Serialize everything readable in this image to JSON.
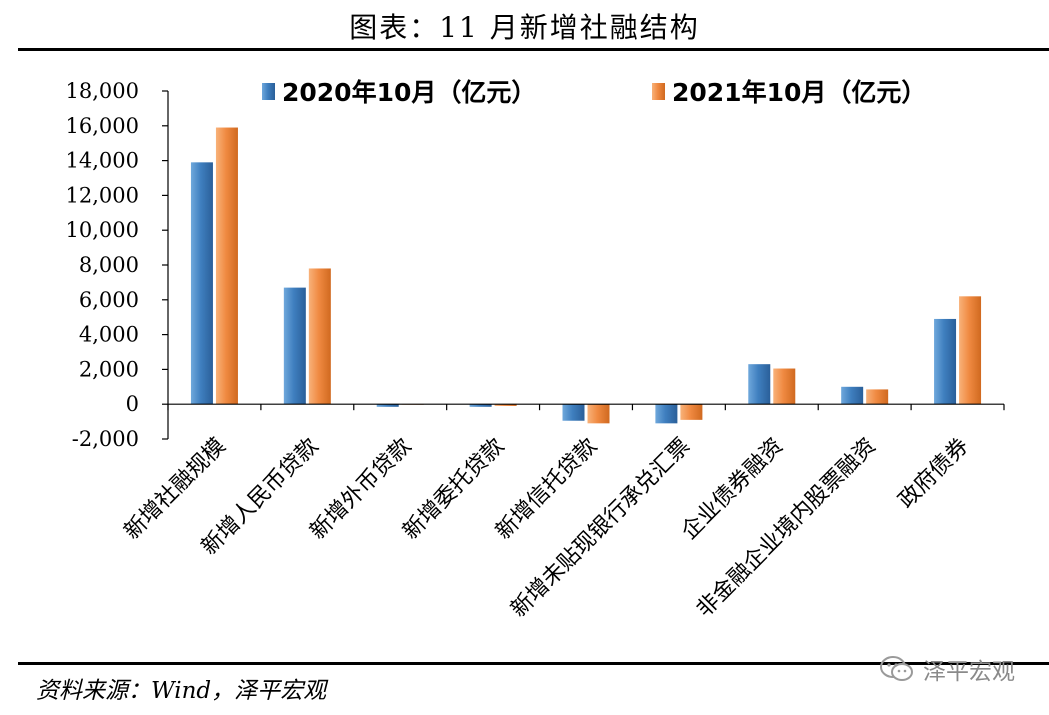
{
  "header": {
    "title": "图表：11 月新增社融结构"
  },
  "footer": {
    "source": "资料来源：Wind，泽平宏观",
    "watermark": "泽平宏观"
  },
  "chart_data": {
    "type": "bar",
    "title": "",
    "xlabel": "",
    "ylabel": "",
    "ylim": [
      -2000,
      18000
    ],
    "yticks": [
      18000,
      16000,
      14000,
      12000,
      10000,
      8000,
      6000,
      4000,
      2000,
      0,
      -2000
    ],
    "ytick_labels": [
      "18,000",
      "16,000",
      "14,000",
      "12,000",
      "10,000",
      "8,000",
      "6,000",
      "4,000",
      "2,000",
      "0",
      "-2,000"
    ],
    "grid": false,
    "legend_position": "top",
    "categories": [
      "新增社融规模",
      "新增人民币贷款",
      "新增外币贷款",
      "新增委托贷款",
      "新增信托贷款",
      "新增未贴现银行承兑汇票",
      "企业债券融资",
      "非金融企业境内股票融资",
      "政府债券"
    ],
    "series": [
      {
        "name": "2020年10月（亿元）",
        "color": "#3f7fbf",
        "values": [
          13900,
          6700,
          -150,
          -150,
          -950,
          -1100,
          2300,
          1000,
          4900
        ]
      },
      {
        "name": "2021年10月（亿元）",
        "color": "#f08a42",
        "values": [
          15900,
          7800,
          0,
          -100,
          -1100,
          -900,
          2050,
          850,
          6200
        ]
      }
    ]
  }
}
